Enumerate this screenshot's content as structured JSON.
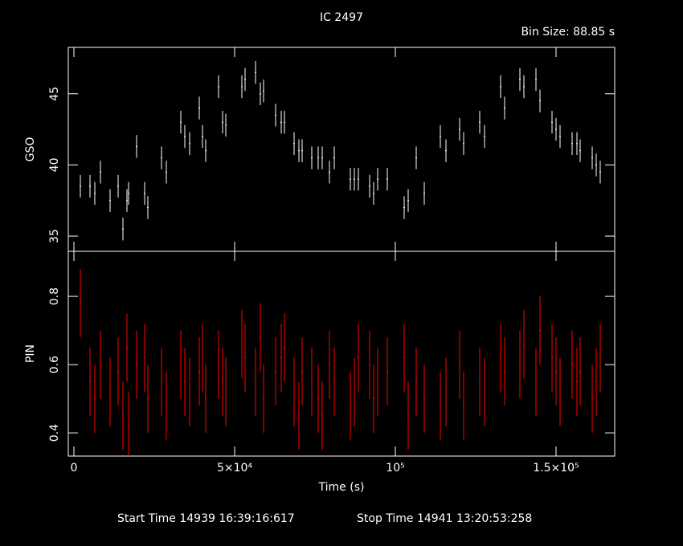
{
  "chart_data": [
    {
      "type": "errorbar",
      "title": "IC 2497",
      "subtitle": "Bin Size: 88.85 s",
      "ylabel": "GSO",
      "color": "#ffffff",
      "x": [
        2000,
        5000,
        6500,
        8250,
        11250,
        13750,
        15250,
        16500,
        17000,
        19500,
        22000,
        23000,
        27250,
        28750,
        33250,
        34500,
        36000,
        39000,
        40000,
        41000,
        45000,
        46250,
        47250,
        52250,
        53250,
        56500,
        58000,
        59000,
        62750,
        64500,
        65500,
        68500,
        70000,
        71000,
        74000,
        76000,
        77250,
        79500,
        81000,
        86000,
        87250,
        88500,
        92000,
        93250,
        94500,
        97500,
        102750,
        104000,
        106500,
        109000,
        114000,
        115750,
        120000,
        121250,
        126250,
        127750,
        132750,
        134000,
        138750,
        140000,
        143750,
        145000,
        148750,
        150000,
        151250,
        155000,
        156500,
        157500,
        161250,
        162500,
        163750
      ],
      "values": [
        38.5,
        38.5,
        38,
        39.5,
        37.5,
        38.5,
        35.5,
        37.5,
        38,
        41.3,
        38,
        37,
        40.5,
        39.5,
        43,
        42,
        41.5,
        44,
        42,
        41,
        45.5,
        43,
        42.8,
        45.5,
        46,
        46.5,
        45,
        45.2,
        43.5,
        43,
        43,
        41.5,
        41,
        41,
        40.5,
        40.5,
        40.5,
        39.5,
        40.5,
        39,
        39,
        39,
        38.5,
        38,
        39,
        39,
        37,
        37.5,
        40.5,
        38,
        42,
        41,
        42.5,
        41.5,
        43,
        42,
        45.5,
        44,
        46,
        45.5,
        46,
        44.5,
        43,
        42.5,
        42,
        41.5,
        41.5,
        41,
        40.5,
        40,
        39.5
      ],
      "yerr": 0.8,
      "xlim": [
        -1750,
        168250
      ],
      "ylim": [
        33.93,
        48.26
      ],
      "yticks": [
        35,
        40,
        45
      ]
    },
    {
      "type": "errorbar",
      "ylabel": "PIN",
      "xlabel": "Time (s)",
      "color": "#ff0000",
      "x": [
        2000,
        5000,
        6500,
        8250,
        11250,
        13750,
        15250,
        16500,
        17000,
        19500,
        22000,
        23000,
        27250,
        28750,
        33250,
        34500,
        36000,
        39000,
        40000,
        41000,
        45000,
        46250,
        47250,
        52250,
        53250,
        56500,
        58000,
        59000,
        62750,
        64500,
        65500,
        68500,
        70000,
        71000,
        74000,
        76000,
        77250,
        79500,
        81000,
        86000,
        87250,
        88500,
        92000,
        93250,
        94500,
        97500,
        102750,
        104000,
        106500,
        109000,
        114000,
        115750,
        120000,
        121250,
        126250,
        127750,
        132750,
        134000,
        138750,
        140000,
        143750,
        145000,
        148750,
        150000,
        151250,
        155000,
        156500,
        157500,
        161250,
        162500,
        163750
      ],
      "values": [
        0.78,
        0.55,
        0.5,
        0.6,
        0.52,
        0.58,
        0.45,
        0.65,
        0.42,
        0.6,
        0.62,
        0.5,
        0.55,
        0.48,
        0.6,
        0.55,
        0.52,
        0.58,
        0.62,
        0.5,
        0.6,
        0.55,
        0.52,
        0.66,
        0.62,
        0.55,
        0.68,
        0.5,
        0.58,
        0.62,
        0.65,
        0.52,
        0.45,
        0.58,
        0.55,
        0.5,
        0.45,
        0.6,
        0.55,
        0.48,
        0.52,
        0.62,
        0.6,
        0.5,
        0.55,
        0.58,
        0.62,
        0.45,
        0.55,
        0.5,
        0.48,
        0.52,
        0.6,
        0.48,
        0.55,
        0.52,
        0.62,
        0.58,
        0.6,
        0.66,
        0.55,
        0.7,
        0.62,
        0.58,
        0.52,
        0.6,
        0.55,
        0.58,
        0.5,
        0.55,
        0.62
      ],
      "yerr": 0.1,
      "xlim": [
        -1750,
        168250
      ],
      "ylim": [
        0.332,
        0.932
      ],
      "yticks": [
        0.4,
        0.6,
        0.8
      ],
      "xticks": [
        {
          "value": 0,
          "label": "0"
        },
        {
          "value": 50000,
          "label": "5×10⁴"
        },
        {
          "value": 100000,
          "label": "10⁵"
        },
        {
          "value": 150000,
          "label": "1.5×10⁵"
        }
      ],
      "annotations": [
        "Start Time 14939 16:39:16:617",
        "Stop Time 14941 13:20:53:258"
      ]
    }
  ]
}
